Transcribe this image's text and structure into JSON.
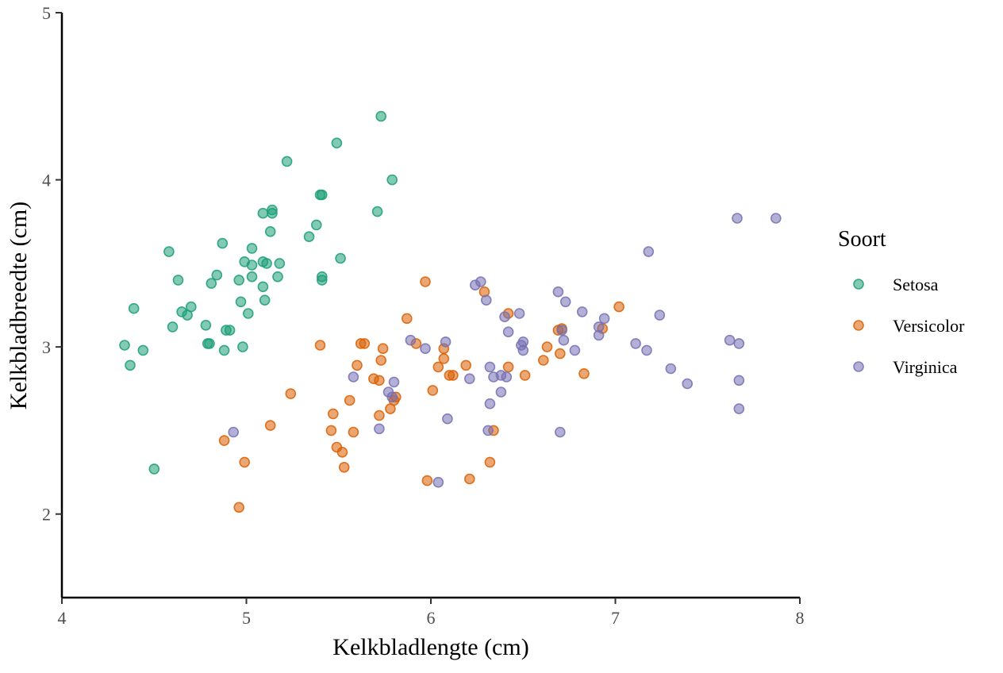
{
  "chart_data": {
    "type": "scatter",
    "xlabel": "Kelkbladlengte (cm)",
    "ylabel": "Kelkbladbreedte (cm)",
    "xlim": [
      4,
      8
    ],
    "ylim": [
      1.5,
      5
    ],
    "xticks": [
      4,
      5,
      6,
      7,
      8
    ],
    "yticks": [
      2,
      3,
      4,
      5
    ],
    "grid": false,
    "legend": {
      "title": "Soort",
      "placement": "right"
    },
    "series": [
      {
        "name": "Setosa",
        "color": "#1b9e77",
        "points": [
          [
            4.34,
            3.01
          ],
          [
            4.37,
            2.89
          ],
          [
            4.39,
            3.23
          ],
          [
            4.44,
            2.98
          ],
          [
            4.5,
            2.27
          ],
          [
            4.58,
            3.57
          ],
          [
            4.6,
            3.12
          ],
          [
            4.63,
            3.4
          ],
          [
            4.65,
            3.21
          ],
          [
            4.68,
            3.19
          ],
          [
            4.7,
            3.24
          ],
          [
            4.78,
            3.13
          ],
          [
            4.79,
            3.02
          ],
          [
            4.8,
            3.02
          ],
          [
            4.81,
            3.38
          ],
          [
            4.84,
            3.43
          ],
          [
            4.87,
            3.62
          ],
          [
            4.88,
            2.98
          ],
          [
            4.89,
            3.1
          ],
          [
            4.91,
            3.1
          ],
          [
            4.96,
            3.4
          ],
          [
            4.97,
            3.27
          ],
          [
            4.98,
            3.0
          ],
          [
            4.99,
            3.51
          ],
          [
            5.01,
            3.2
          ],
          [
            5.03,
            3.42
          ],
          [
            5.03,
            3.49
          ],
          [
            5.03,
            3.59
          ],
          [
            5.09,
            3.8
          ],
          [
            5.09,
            3.51
          ],
          [
            5.09,
            3.36
          ],
          [
            5.1,
            3.28
          ],
          [
            5.11,
            3.5
          ],
          [
            5.13,
            3.69
          ],
          [
            5.14,
            3.82
          ],
          [
            5.14,
            3.8
          ],
          [
            5.17,
            3.42
          ],
          [
            5.18,
            3.5
          ],
          [
            5.22,
            4.11
          ],
          [
            5.34,
            3.66
          ],
          [
            5.38,
            3.73
          ],
          [
            5.4,
            3.91
          ],
          [
            5.41,
            3.91
          ],
          [
            5.41,
            3.4
          ],
          [
            5.41,
            3.42
          ],
          [
            5.49,
            4.22
          ],
          [
            5.51,
            3.53
          ],
          [
            5.71,
            3.81
          ],
          [
            5.73,
            4.38
          ],
          [
            5.79,
            4.0
          ]
        ]
      },
      {
        "name": "Versicolor",
        "color": "#d95f02",
        "points": [
          [
            4.88,
            2.44
          ],
          [
            4.96,
            2.04
          ],
          [
            4.99,
            2.31
          ],
          [
            5.13,
            2.53
          ],
          [
            5.24,
            2.72
          ],
          [
            5.4,
            3.01
          ],
          [
            5.46,
            2.5
          ],
          [
            5.47,
            2.6
          ],
          [
            5.49,
            2.4
          ],
          [
            5.52,
            2.37
          ],
          [
            5.53,
            2.28
          ],
          [
            5.56,
            2.68
          ],
          [
            5.58,
            2.49
          ],
          [
            5.6,
            2.89
          ],
          [
            5.62,
            3.02
          ],
          [
            5.64,
            3.02
          ],
          [
            5.69,
            2.81
          ],
          [
            5.72,
            2.8
          ],
          [
            5.72,
            2.59
          ],
          [
            5.73,
            2.92
          ],
          [
            5.74,
            2.99
          ],
          [
            5.78,
            2.63
          ],
          [
            5.8,
            2.68
          ],
          [
            5.81,
            2.7
          ],
          [
            5.87,
            3.17
          ],
          [
            5.92,
            3.02
          ],
          [
            5.97,
            3.39
          ],
          [
            5.98,
            2.2
          ],
          [
            6.01,
            2.74
          ],
          [
            6.04,
            2.88
          ],
          [
            6.07,
            2.99
          ],
          [
            6.07,
            2.93
          ],
          [
            6.1,
            2.83
          ],
          [
            6.12,
            2.83
          ],
          [
            6.19,
            2.89
          ],
          [
            6.21,
            2.21
          ],
          [
            6.29,
            3.33
          ],
          [
            6.32,
            2.31
          ],
          [
            6.34,
            2.5
          ],
          [
            6.42,
            3.2
          ],
          [
            6.42,
            2.88
          ],
          [
            6.51,
            2.83
          ],
          [
            6.61,
            2.92
          ],
          [
            6.63,
            3.0
          ],
          [
            6.69,
            3.1
          ],
          [
            6.7,
            2.96
          ],
          [
            6.71,
            3.11
          ],
          [
            6.83,
            2.84
          ],
          [
            6.93,
            3.11
          ],
          [
            7.02,
            3.24
          ]
        ]
      },
      {
        "name": "Virginica",
        "color": "#7570b3",
        "points": [
          [
            4.93,
            2.49
          ],
          [
            5.58,
            2.82
          ],
          [
            5.72,
            2.51
          ],
          [
            5.77,
            2.73
          ],
          [
            5.79,
            2.7
          ],
          [
            5.8,
            2.79
          ],
          [
            5.89,
            3.04
          ],
          [
            5.97,
            2.99
          ],
          [
            6.04,
            2.19
          ],
          [
            6.08,
            3.03
          ],
          [
            6.09,
            2.57
          ],
          [
            6.21,
            2.81
          ],
          [
            6.24,
            3.37
          ],
          [
            6.27,
            3.39
          ],
          [
            6.3,
            3.28
          ],
          [
            6.31,
            2.5
          ],
          [
            6.32,
            2.66
          ],
          [
            6.32,
            2.88
          ],
          [
            6.34,
            2.82
          ],
          [
            6.38,
            2.73
          ],
          [
            6.38,
            2.83
          ],
          [
            6.4,
            3.18
          ],
          [
            6.41,
            2.82
          ],
          [
            6.42,
            3.09
          ],
          [
            6.48,
            3.2
          ],
          [
            6.49,
            3.01
          ],
          [
            6.5,
            3.03
          ],
          [
            6.5,
            2.98
          ],
          [
            6.69,
            3.33
          ],
          [
            6.7,
            2.49
          ],
          [
            6.71,
            3.1
          ],
          [
            6.72,
            3.04
          ],
          [
            6.73,
            3.27
          ],
          [
            6.78,
            2.98
          ],
          [
            6.82,
            3.21
          ],
          [
            6.91,
            3.12
          ],
          [
            6.91,
            3.07
          ],
          [
            6.94,
            3.17
          ],
          [
            7.11,
            3.02
          ],
          [
            7.17,
            2.98
          ],
          [
            7.18,
            3.57
          ],
          [
            7.24,
            3.19
          ],
          [
            7.3,
            2.87
          ],
          [
            7.39,
            2.78
          ],
          [
            7.62,
            3.04
          ],
          [
            7.66,
            3.77
          ],
          [
            7.67,
            3.02
          ],
          [
            7.67,
            2.8
          ],
          [
            7.67,
            2.63
          ],
          [
            7.87,
            3.77
          ]
        ]
      }
    ]
  }
}
